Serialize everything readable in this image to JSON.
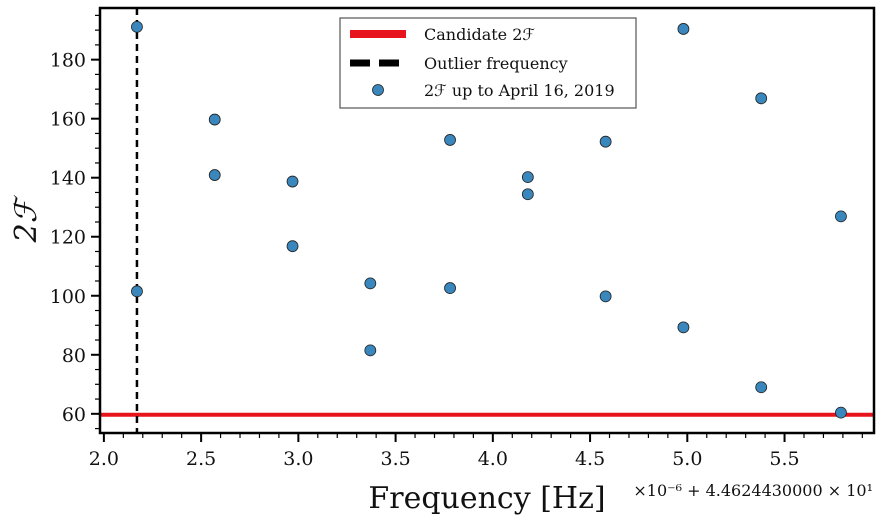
{
  "chart_data": {
    "type": "scatter",
    "xlabel": "Frequency [Hz]",
    "ylabel": "2ℱ",
    "x_offset_label": "×10⁻⁶ + 4.4624430000 × 10¹",
    "xlim": [
      1.98,
      5.96
    ],
    "ylim": [
      53.5,
      197.5
    ],
    "x_ticks": [
      2.0,
      2.5,
      3.0,
      3.5,
      4.0,
      4.5,
      5.0,
      5.5
    ],
    "x_tick_labels": [
      "2.0",
      "2.5",
      "3.0",
      "3.5",
      "4.0",
      "4.5",
      "5.0",
      "5.5"
    ],
    "y_ticks": [
      60,
      80,
      100,
      120,
      140,
      160,
      180
    ],
    "y_tick_labels": [
      "60",
      "80",
      "100",
      "120",
      "140",
      "160",
      "180"
    ],
    "grid": false,
    "legend_position": "top-center",
    "candidate": {
      "name": "Candidate 2ℱ",
      "value": 59.7,
      "color": "#e8141b"
    },
    "outlier": {
      "name": "Outlier frequency",
      "x": 2.17,
      "color": "#000000"
    },
    "series": [
      {
        "name": "2ℱ up to April 16, 2019",
        "color": "#3a87bd",
        "points": [
          {
            "x": 2.17,
            "y": 191.1
          },
          {
            "x": 2.17,
            "y": 101.5
          },
          {
            "x": 2.57,
            "y": 159.7
          },
          {
            "x": 2.57,
            "y": 140.9
          },
          {
            "x": 2.97,
            "y": 138.7
          },
          {
            "x": 2.97,
            "y": 116.8
          },
          {
            "x": 3.37,
            "y": 104.2
          },
          {
            "x": 3.37,
            "y": 81.5
          },
          {
            "x": 3.78,
            "y": 152.8
          },
          {
            "x": 3.78,
            "y": 102.6
          },
          {
            "x": 4.18,
            "y": 140.2
          },
          {
            "x": 4.18,
            "y": 134.4
          },
          {
            "x": 4.58,
            "y": 152.2
          },
          {
            "x": 4.58,
            "y": 99.8
          },
          {
            "x": 4.98,
            "y": 190.4
          },
          {
            "x": 4.98,
            "y": 89.3
          },
          {
            "x": 5.38,
            "y": 166.9
          },
          {
            "x": 5.38,
            "y": 69.0
          },
          {
            "x": 5.79,
            "y": 126.9
          },
          {
            "x": 5.79,
            "y": 60.4
          }
        ]
      }
    ]
  }
}
